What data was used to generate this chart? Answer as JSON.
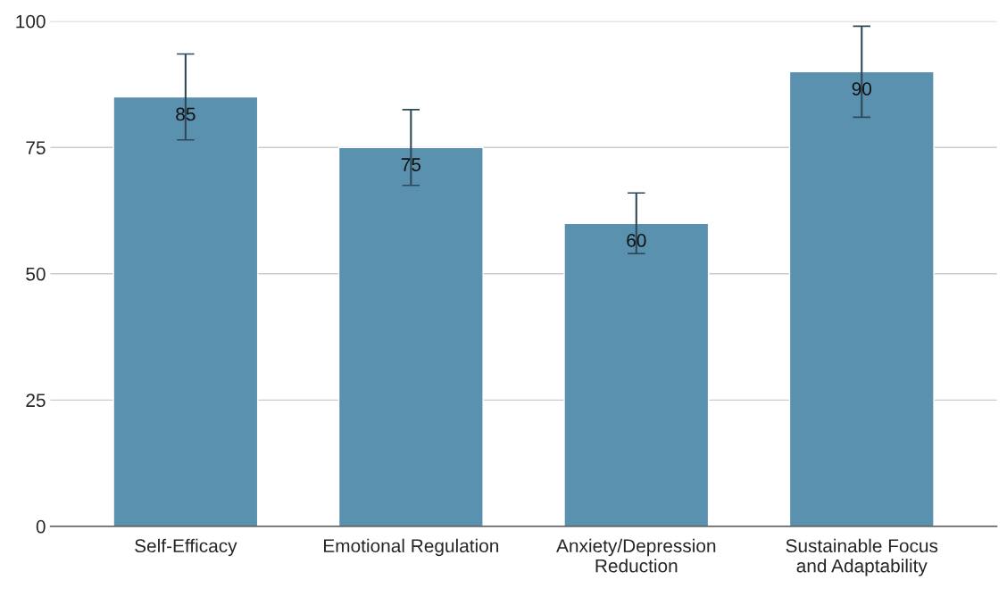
{
  "chart_data": {
    "type": "bar",
    "categories": [
      "Self-Efficacy",
      "Emotional Regulation",
      "Anxiety/Depression Reduction",
      "Sustainable Focus and Adaptability"
    ],
    "values": [
      85,
      75,
      60,
      90
    ],
    "errors": [
      8.5,
      7.5,
      6,
      9
    ],
    "color": "#5a91ae",
    "ylim": [
      0,
      100
    ],
    "yticks": [
      0,
      25,
      50,
      75,
      100
    ],
    "grid": "y",
    "data_labels": true
  }
}
